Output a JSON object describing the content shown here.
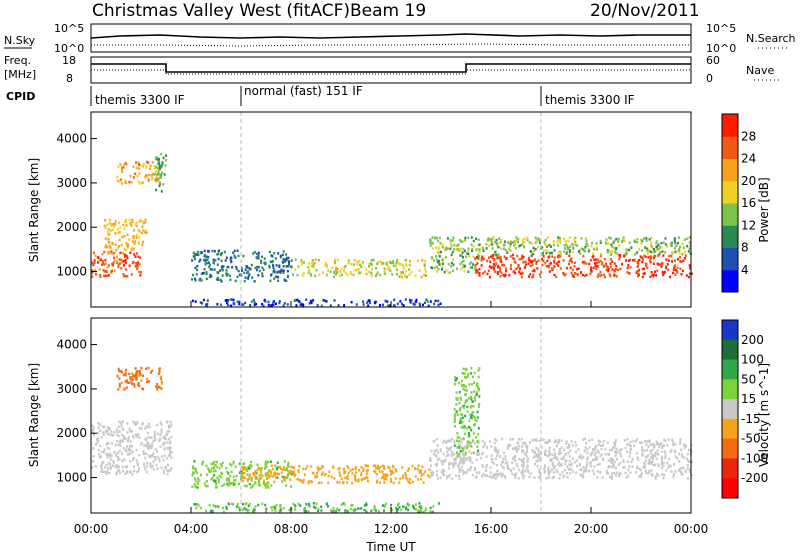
{
  "header": {
    "station": "Christmas Valley West (fitACF)",
    "beam": "Beam 19",
    "date": "20/Nov/2011"
  },
  "nsky_panel": {
    "left_label": "N.Sky",
    "right_label": "N.Search",
    "left_ticks": [
      "10^5",
      "10^0"
    ],
    "right_ticks": [
      "10^5",
      "10^0"
    ]
  },
  "freq_panel": {
    "left_label_line1": "Freq.",
    "left_label_line2": "[MHz]",
    "right_label": "Nave",
    "left_ticks": [
      "18",
      "8"
    ],
    "right_ticks": [
      "60",
      "0"
    ]
  },
  "cpid": {
    "label": "CPID",
    "segments": [
      {
        "start_hour": 0,
        "name": "themis 3300 IF"
      },
      {
        "start_hour": 6,
        "name": "normal (fast) 151 IF"
      },
      {
        "start_hour": 18,
        "name": "themis 3300 IF"
      }
    ]
  },
  "chart_data": [
    {
      "type": "heatmap",
      "title": "Power",
      "xlabel": "",
      "ylabel": "Slant Range [km]",
      "xlim_hours": [
        0,
        24
      ],
      "ylim": [
        200,
        4600
      ],
      "yticks": [
        "1000",
        "2000",
        "3000",
        "4000"
      ],
      "colorbar_label": "Power [dB]",
      "colorbar_ticks": [
        "4",
        "8",
        "12",
        "16",
        "20",
        "24",
        "28"
      ],
      "colorbar_colors": [
        "#0000ff",
        "#1f4fb0",
        "#2a8a55",
        "#7fc24a",
        "#f0d020",
        "#f7a21c",
        "#f25a14",
        "#ff1a00"
      ],
      "regions": [
        {
          "t": [
            0.0,
            2.0
          ],
          "r": [
            900,
            1500
          ],
          "v": 27
        },
        {
          "t": [
            0.5,
            2.2
          ],
          "r": [
            1500,
            2200
          ],
          "v": 20
        },
        {
          "t": [
            1.0,
            2.8
          ],
          "r": [
            3000,
            3500
          ],
          "v": 22
        },
        {
          "t": [
            2.5,
            3.0
          ],
          "r": [
            2800,
            3700
          ],
          "v": 12
        },
        {
          "t": [
            4.0,
            8.0
          ],
          "r": [
            800,
            1500
          ],
          "v": 8
        },
        {
          "t": [
            8.0,
            13.5
          ],
          "r": [
            900,
            1300
          ],
          "v": 17
        },
        {
          "t": [
            13.5,
            15.5
          ],
          "r": [
            1000,
            1800
          ],
          "v": 14
        },
        {
          "t": [
            15.3,
            24.0
          ],
          "r": [
            900,
            1400
          ],
          "v": 28
        },
        {
          "t": [
            15.5,
            24.0
          ],
          "r": [
            1400,
            1800
          ],
          "v": 14
        },
        {
          "t": [
            4.0,
            14.0
          ],
          "r": [
            250,
            400
          ],
          "v": 5
        }
      ]
    },
    {
      "type": "heatmap",
      "title": "Velocity",
      "xlabel": "Time UT",
      "ylabel": "Slant Range [km]",
      "xlim_hours": [
        0,
        24
      ],
      "ylim": [
        200,
        4600
      ],
      "xticks": [
        "00:00",
        "04:00",
        "08:00",
        "12:00",
        "16:00",
        "20:00",
        "00:00"
      ],
      "yticks": [
        "1000",
        "2000",
        "3000",
        "4000"
      ],
      "colorbar_label": "Velocity [m s^-1]",
      "colorbar_ticks": [
        "200",
        "100",
        "50",
        "15",
        "-15",
        "-50",
        "-100",
        "-200"
      ],
      "colorbar_colors": [
        "#1a37c8",
        "#1e6e3a",
        "#2fa84a",
        "#7cd23a",
        "#c8c8c8",
        "#f5a21c",
        "#f56a14",
        "#e8280e",
        "#ff0000"
      ],
      "regions": [
        {
          "t": [
            0.0,
            3.2
          ],
          "r": [
            1100,
            2300
          ],
          "v": 0
        },
        {
          "t": [
            1.0,
            2.8
          ],
          "r": [
            3000,
            3500
          ],
          "v": -60
        },
        {
          "t": [
            4.0,
            8.0
          ],
          "r": [
            800,
            1400
          ],
          "v": 40
        },
        {
          "t": [
            6.0,
            13.5
          ],
          "r": [
            900,
            1300
          ],
          "v": -35
        },
        {
          "t": [
            13.5,
            24.0
          ],
          "r": [
            1000,
            1900
          ],
          "v": 0
        },
        {
          "t": [
            14.5,
            15.5
          ],
          "r": [
            1500,
            3500
          ],
          "v": 40
        },
        {
          "t": [
            4.0,
            14.0
          ],
          "r": [
            250,
            450
          ],
          "v": 50
        }
      ]
    }
  ]
}
